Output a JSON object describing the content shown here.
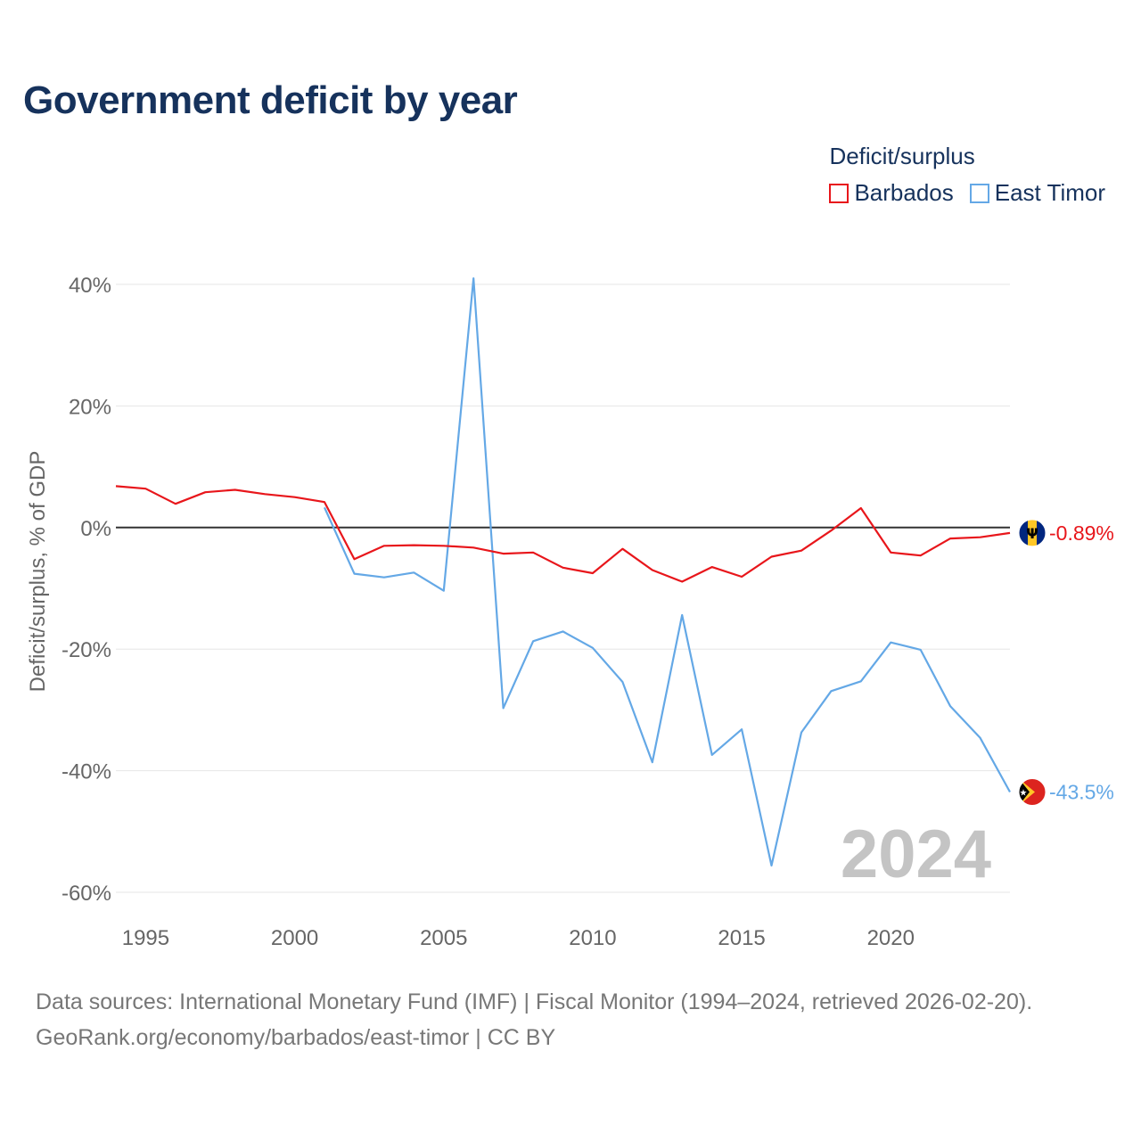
{
  "title": "Government deficit by year",
  "legend": {
    "title": "Deficit/surplus",
    "items": [
      {
        "name": "Barbados",
        "color": "#e8161b"
      },
      {
        "name": "East Timor",
        "color": "#64a8e6"
      }
    ]
  },
  "chart_data": {
    "type": "line",
    "title": "Government deficit by year",
    "xlabel": "",
    "ylabel": "Deficit/surplus, % of GDP",
    "xlim": [
      1994,
      2024
    ],
    "ylim": [
      -60,
      40
    ],
    "x_ticks": [
      1995,
      2000,
      2005,
      2010,
      2015,
      2020
    ],
    "y_ticks": [
      40,
      20,
      0,
      -20,
      -40,
      -60
    ],
    "y_tick_labels": [
      "40%",
      "20%",
      "0%",
      "-20%",
      "-40%",
      "-60%"
    ],
    "grid": true,
    "legend_position": "top-right",
    "year_watermark": "2024",
    "series": [
      {
        "name": "Barbados",
        "color": "#e8161b",
        "x": [
          1994,
          1995,
          1996,
          1997,
          1998,
          1999,
          2000,
          2001,
          2002,
          2003,
          2004,
          2005,
          2006,
          2007,
          2008,
          2009,
          2010,
          2011,
          2012,
          2013,
          2014,
          2015,
          2016,
          2017,
          2018,
          2019,
          2020,
          2021,
          2022,
          2023,
          2024
        ],
        "values": [
          6.8,
          6.4,
          3.9,
          5.8,
          6.2,
          5.5,
          5.0,
          4.2,
          -5.2,
          -3.0,
          -2.9,
          -3.0,
          -3.3,
          -4.3,
          -4.1,
          -6.6,
          -7.5,
          -3.5,
          -7.0,
          -8.9,
          -6.5,
          -8.1,
          -4.8,
          -3.8,
          -0.5,
          3.2,
          -4.1,
          -4.6,
          -1.8,
          -1.6,
          -0.89
        ],
        "end_label": "-0.89%"
      },
      {
        "name": "East Timor",
        "color": "#64a8e6",
        "x": [
          2001,
          2002,
          2003,
          2004,
          2005,
          2006,
          2007,
          2008,
          2009,
          2010,
          2011,
          2012,
          2013,
          2014,
          2015,
          2016,
          2017,
          2018,
          2019,
          2020,
          2021,
          2022,
          2023,
          2024
        ],
        "values": [
          3.3,
          -7.6,
          -8.2,
          -7.4,
          -10.4,
          41.0,
          -29.7,
          -18.7,
          -17.1,
          -19.8,
          -25.4,
          -38.6,
          -14.4,
          -37.4,
          -33.2,
          -55.6,
          -33.7,
          -26.9,
          -25.3,
          -18.9,
          -20.1,
          -29.4,
          -34.6,
          -43.5
        ],
        "end_label": "-43.5%"
      }
    ]
  },
  "footer": {
    "line1": "Data sources: International Monetary Fund (IMF) | Fiscal Monitor (1994–2024, retrieved 2026-02-20).",
    "line2": "GeoRank.org/economy/barbados/east-timor | CC BY"
  }
}
